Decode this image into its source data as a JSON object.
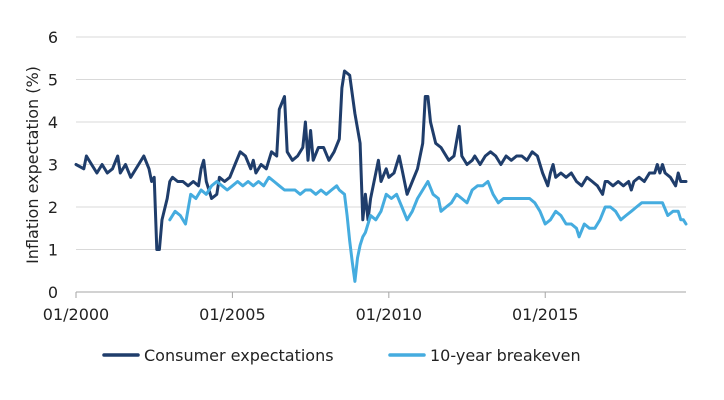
{
  "chart_data": {
    "type": "line",
    "ylabel": "Inflation expectation (%)",
    "xlabel": "",
    "ylim": [
      0,
      6
    ],
    "yticks": [
      "0",
      "1",
      "2",
      "3",
      "4",
      "5",
      "6"
    ],
    "xlim": [
      "2000-01",
      "2019-07"
    ],
    "xticks": [
      {
        "date": "2000-01",
        "label": "01/2000"
      },
      {
        "date": "2005-01",
        "label": "01/2005"
      },
      {
        "date": "2010-01",
        "label": "01/2010"
      },
      {
        "date": "2015-01",
        "label": "01/2015"
      }
    ],
    "grid": "horizontal",
    "legend": "bottom",
    "series": [
      {
        "name": "Consumer expectations",
        "color": "#1f3d6b",
        "points": [
          [
            "2000-01",
            3.0
          ],
          [
            "2000-04",
            2.9
          ],
          [
            "2000-05",
            3.2
          ],
          [
            "2000-07",
            3.0
          ],
          [
            "2000-09",
            2.8
          ],
          [
            "2000-11",
            3.0
          ],
          [
            "2001-01",
            2.8
          ],
          [
            "2001-03",
            2.9
          ],
          [
            "2001-05",
            3.2
          ],
          [
            "2001-06",
            2.8
          ],
          [
            "2001-08",
            3.0
          ],
          [
            "2001-10",
            2.7
          ],
          [
            "2002-01",
            3.0
          ],
          [
            "2002-03",
            3.2
          ],
          [
            "2002-05",
            2.9
          ],
          [
            "2002-06",
            2.6
          ],
          [
            "2002-07",
            2.7
          ],
          [
            "2002-08",
            1.0
          ],
          [
            "2002-09",
            1.0
          ],
          [
            "2002-10",
            1.7
          ],
          [
            "2002-12",
            2.2
          ],
          [
            "2003-01",
            2.6
          ],
          [
            "2003-02",
            2.7
          ],
          [
            "2003-04",
            2.6
          ],
          [
            "2003-06",
            2.6
          ],
          [
            "2003-08",
            2.5
          ],
          [
            "2003-10",
            2.6
          ],
          [
            "2003-12",
            2.5
          ],
          [
            "2004-01",
            2.9
          ],
          [
            "2004-02",
            3.1
          ],
          [
            "2004-03",
            2.6
          ],
          [
            "2004-05",
            2.2
          ],
          [
            "2004-07",
            2.3
          ],
          [
            "2004-08",
            2.7
          ],
          [
            "2004-10",
            2.6
          ],
          [
            "2004-12",
            2.7
          ],
          [
            "2005-02",
            3.0
          ],
          [
            "2005-04",
            3.3
          ],
          [
            "2005-06",
            3.2
          ],
          [
            "2005-08",
            2.9
          ],
          [
            "2005-09",
            3.1
          ],
          [
            "2005-10",
            2.8
          ],
          [
            "2005-12",
            3.0
          ],
          [
            "2006-02",
            2.9
          ],
          [
            "2006-04",
            3.3
          ],
          [
            "2006-06",
            3.2
          ],
          [
            "2006-07",
            4.3
          ],
          [
            "2006-09",
            4.6
          ],
          [
            "2006-10",
            3.3
          ],
          [
            "2006-12",
            3.1
          ],
          [
            "2007-02",
            3.2
          ],
          [
            "2007-04",
            3.4
          ],
          [
            "2007-05",
            4.0
          ],
          [
            "2007-06",
            3.1
          ],
          [
            "2007-07",
            3.8
          ],
          [
            "2007-08",
            3.1
          ],
          [
            "2007-10",
            3.4
          ],
          [
            "2007-12",
            3.4
          ],
          [
            "2008-02",
            3.1
          ],
          [
            "2008-04",
            3.3
          ],
          [
            "2008-06",
            3.6
          ],
          [
            "2008-07",
            4.8
          ],
          [
            "2008-08",
            5.2
          ],
          [
            "2008-10",
            5.1
          ],
          [
            "2008-12",
            4.2
          ],
          [
            "2009-02",
            3.5
          ],
          [
            "2009-03",
            1.7
          ],
          [
            "2009-04",
            2.3
          ],
          [
            "2009-05",
            1.7
          ],
          [
            "2009-06",
            2.2
          ],
          [
            "2009-08",
            2.8
          ],
          [
            "2009-09",
            3.1
          ],
          [
            "2009-10",
            2.6
          ],
          [
            "2009-12",
            2.9
          ],
          [
            "2010-01",
            2.7
          ],
          [
            "2010-03",
            2.8
          ],
          [
            "2010-05",
            3.2
          ],
          [
            "2010-06",
            2.9
          ],
          [
            "2010-08",
            2.3
          ],
          [
            "2010-10",
            2.6
          ],
          [
            "2010-12",
            2.9
          ],
          [
            "2011-02",
            3.5
          ],
          [
            "2011-03",
            4.6
          ],
          [
            "2011-04",
            4.6
          ],
          [
            "2011-05",
            4.0
          ],
          [
            "2011-07",
            3.5
          ],
          [
            "2011-09",
            3.4
          ],
          [
            "2011-10",
            3.3
          ],
          [
            "2011-12",
            3.1
          ],
          [
            "2012-02",
            3.2
          ],
          [
            "2012-04",
            3.9
          ],
          [
            "2012-05",
            3.2
          ],
          [
            "2012-07",
            3.0
          ],
          [
            "2012-09",
            3.1
          ],
          [
            "2012-10",
            3.2
          ],
          [
            "2012-12",
            3.0
          ],
          [
            "2013-02",
            3.2
          ],
          [
            "2013-04",
            3.3
          ],
          [
            "2013-06",
            3.2
          ],
          [
            "2013-08",
            3.0
          ],
          [
            "2013-10",
            3.2
          ],
          [
            "2013-12",
            3.1
          ],
          [
            "2014-02",
            3.2
          ],
          [
            "2014-04",
            3.2
          ],
          [
            "2014-06",
            3.1
          ],
          [
            "2014-08",
            3.3
          ],
          [
            "2014-10",
            3.2
          ],
          [
            "2014-12",
            2.8
          ],
          [
            "2015-02",
            2.5
          ],
          [
            "2015-03",
            2.8
          ],
          [
            "2015-04",
            3.0
          ],
          [
            "2015-05",
            2.7
          ],
          [
            "2015-07",
            2.8
          ],
          [
            "2015-09",
            2.7
          ],
          [
            "2015-11",
            2.8
          ],
          [
            "2016-01",
            2.6
          ],
          [
            "2016-03",
            2.5
          ],
          [
            "2016-05",
            2.7
          ],
          [
            "2016-07",
            2.6
          ],
          [
            "2016-09",
            2.5
          ],
          [
            "2016-11",
            2.3
          ],
          [
            "2016-12",
            2.6
          ],
          [
            "2017-01",
            2.6
          ],
          [
            "2017-03",
            2.5
          ],
          [
            "2017-05",
            2.6
          ],
          [
            "2017-07",
            2.5
          ],
          [
            "2017-09",
            2.6
          ],
          [
            "2017-10",
            2.4
          ],
          [
            "2017-11",
            2.6
          ],
          [
            "2018-01",
            2.7
          ],
          [
            "2018-03",
            2.6
          ],
          [
            "2018-05",
            2.8
          ],
          [
            "2018-07",
            2.8
          ],
          [
            "2018-08",
            3.0
          ],
          [
            "2018-09",
            2.8
          ],
          [
            "2018-10",
            3.0
          ],
          [
            "2018-11",
            2.8
          ],
          [
            "2019-01",
            2.7
          ],
          [
            "2019-03",
            2.5
          ],
          [
            "2019-04",
            2.8
          ],
          [
            "2019-05",
            2.6
          ],
          [
            "2019-07",
            2.6
          ]
        ]
      },
      {
        "name": "10-year breakeven",
        "color": "#45acdf",
        "points": [
          [
            "2003-01",
            1.7
          ],
          [
            "2003-03",
            1.9
          ],
          [
            "2003-05",
            1.8
          ],
          [
            "2003-07",
            1.6
          ],
          [
            "2003-09",
            2.3
          ],
          [
            "2003-11",
            2.2
          ],
          [
            "2004-01",
            2.4
          ],
          [
            "2004-03",
            2.3
          ],
          [
            "2004-05",
            2.5
          ],
          [
            "2004-07",
            2.6
          ],
          [
            "2004-09",
            2.5
          ],
          [
            "2004-11",
            2.4
          ],
          [
            "2005-01",
            2.5
          ],
          [
            "2005-03",
            2.6
          ],
          [
            "2005-05",
            2.5
          ],
          [
            "2005-07",
            2.6
          ],
          [
            "2005-09",
            2.5
          ],
          [
            "2005-11",
            2.6
          ],
          [
            "2006-01",
            2.5
          ],
          [
            "2006-03",
            2.7
          ],
          [
            "2006-05",
            2.6
          ],
          [
            "2006-07",
            2.5
          ],
          [
            "2006-09",
            2.4
          ],
          [
            "2006-11",
            2.4
          ],
          [
            "2007-01",
            2.4
          ],
          [
            "2007-03",
            2.3
          ],
          [
            "2007-05",
            2.4
          ],
          [
            "2007-07",
            2.4
          ],
          [
            "2007-09",
            2.3
          ],
          [
            "2007-11",
            2.4
          ],
          [
            "2008-01",
            2.3
          ],
          [
            "2008-03",
            2.4
          ],
          [
            "2008-05",
            2.5
          ],
          [
            "2008-06",
            2.4
          ],
          [
            "2008-08",
            2.3
          ],
          [
            "2008-09",
            1.8
          ],
          [
            "2008-10",
            1.2
          ],
          [
            "2008-11",
            0.7
          ],
          [
            "2008-12",
            0.25
          ],
          [
            "2009-01",
            0.8
          ],
          [
            "2009-02",
            1.1
          ],
          [
            "2009-03",
            1.3
          ],
          [
            "2009-04",
            1.4
          ],
          [
            "2009-06",
            1.8
          ],
          [
            "2009-08",
            1.7
          ],
          [
            "2009-10",
            1.9
          ],
          [
            "2009-12",
            2.3
          ],
          [
            "2010-02",
            2.2
          ],
          [
            "2010-04",
            2.3
          ],
          [
            "2010-06",
            2.0
          ],
          [
            "2010-08",
            1.7
          ],
          [
            "2010-10",
            1.9
          ],
          [
            "2010-12",
            2.2
          ],
          [
            "2011-02",
            2.4
          ],
          [
            "2011-04",
            2.6
          ],
          [
            "2011-06",
            2.3
          ],
          [
            "2011-08",
            2.2
          ],
          [
            "2011-09",
            1.9
          ],
          [
            "2011-11",
            2.0
          ],
          [
            "2012-01",
            2.1
          ],
          [
            "2012-03",
            2.3
          ],
          [
            "2012-05",
            2.2
          ],
          [
            "2012-07",
            2.1
          ],
          [
            "2012-09",
            2.4
          ],
          [
            "2012-11",
            2.5
          ],
          [
            "2013-01",
            2.5
          ],
          [
            "2013-03",
            2.6
          ],
          [
            "2013-05",
            2.3
          ],
          [
            "2013-07",
            2.1
          ],
          [
            "2013-09",
            2.2
          ],
          [
            "2013-11",
            2.2
          ],
          [
            "2014-01",
            2.2
          ],
          [
            "2014-03",
            2.2
          ],
          [
            "2014-05",
            2.2
          ],
          [
            "2014-07",
            2.2
          ],
          [
            "2014-09",
            2.1
          ],
          [
            "2014-11",
            1.9
          ],
          [
            "2015-01",
            1.6
          ],
          [
            "2015-03",
            1.7
          ],
          [
            "2015-05",
            1.9
          ],
          [
            "2015-07",
            1.8
          ],
          [
            "2015-09",
            1.6
          ],
          [
            "2015-11",
            1.6
          ],
          [
            "2016-01",
            1.5
          ],
          [
            "2016-02",
            1.3
          ],
          [
            "2016-04",
            1.6
          ],
          [
            "2016-06",
            1.5
          ],
          [
            "2016-08",
            1.5
          ],
          [
            "2016-10",
            1.7
          ],
          [
            "2016-12",
            2.0
          ],
          [
            "2017-02",
            2.0
          ],
          [
            "2017-04",
            1.9
          ],
          [
            "2017-06",
            1.7
          ],
          [
            "2017-08",
            1.8
          ],
          [
            "2017-10",
            1.9
          ],
          [
            "2017-12",
            2.0
          ],
          [
            "2018-02",
            2.1
          ],
          [
            "2018-04",
            2.1
          ],
          [
            "2018-06",
            2.1
          ],
          [
            "2018-08",
            2.1
          ],
          [
            "2018-10",
            2.1
          ],
          [
            "2018-12",
            1.8
          ],
          [
            "2019-02",
            1.9
          ],
          [
            "2019-04",
            1.9
          ],
          [
            "2019-05",
            1.7
          ],
          [
            "2019-06",
            1.7
          ],
          [
            "2019-07",
            1.6
          ]
        ]
      }
    ]
  }
}
